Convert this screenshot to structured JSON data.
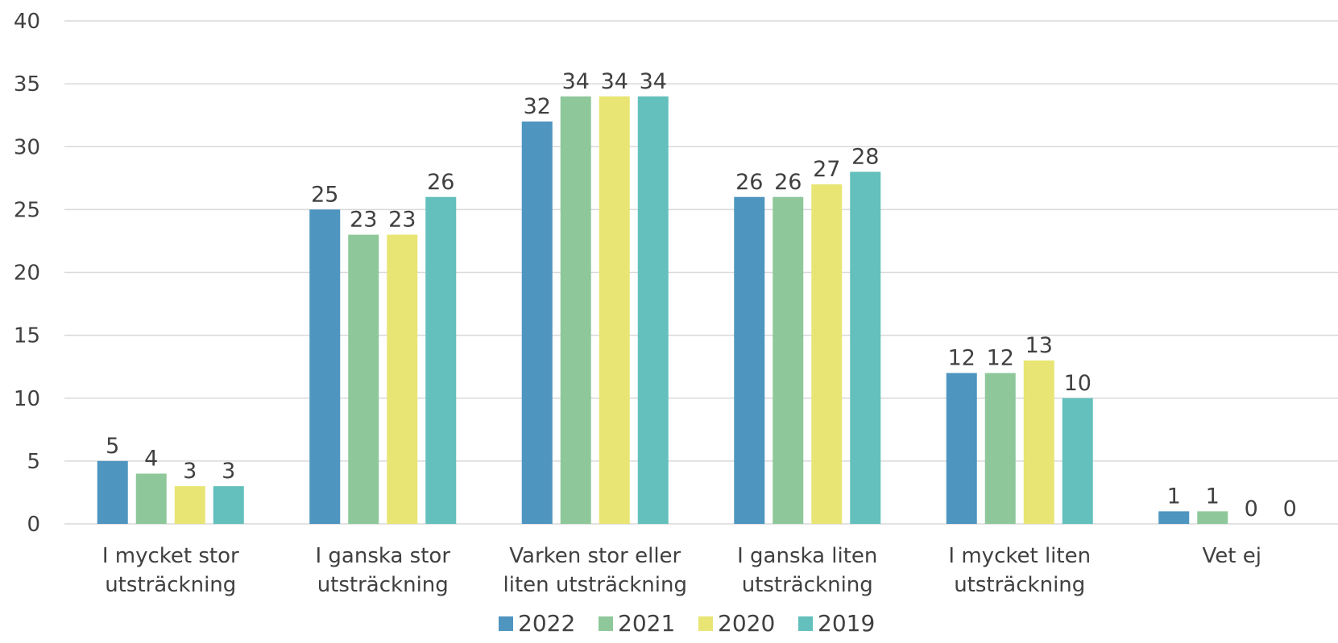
{
  "chart_data": {
    "type": "bar",
    "title": "",
    "xlabel": "",
    "ylabel": "",
    "ylim": [
      0,
      40
    ],
    "yticks": [
      0,
      5,
      10,
      15,
      20,
      25,
      30,
      35,
      40
    ],
    "grid": true,
    "legend_position": "bottom",
    "categories": [
      [
        "I mycket stor",
        "utsträckning"
      ],
      [
        "I ganska stor",
        "utsträckning"
      ],
      [
        "Varken stor eller",
        "liten utsträckning"
      ],
      [
        "I ganska liten",
        "utsträckning"
      ],
      [
        "I mycket liten",
        "utsträckning"
      ],
      [
        "Vet ej"
      ]
    ],
    "series": [
      {
        "name": "2022",
        "color": "#4e95c0",
        "values": [
          5,
          25,
          32,
          26,
          12,
          1
        ]
      },
      {
        "name": "2021",
        "color": "#8ec89a",
        "values": [
          4,
          23,
          34,
          26,
          12,
          1
        ]
      },
      {
        "name": "2020",
        "color": "#e8e574",
        "values": [
          3,
          23,
          34,
          27,
          13,
          0
        ]
      },
      {
        "name": "2019",
        "color": "#63c0bc",
        "values": [
          3,
          26,
          34,
          28,
          10,
          0
        ]
      }
    ]
  }
}
